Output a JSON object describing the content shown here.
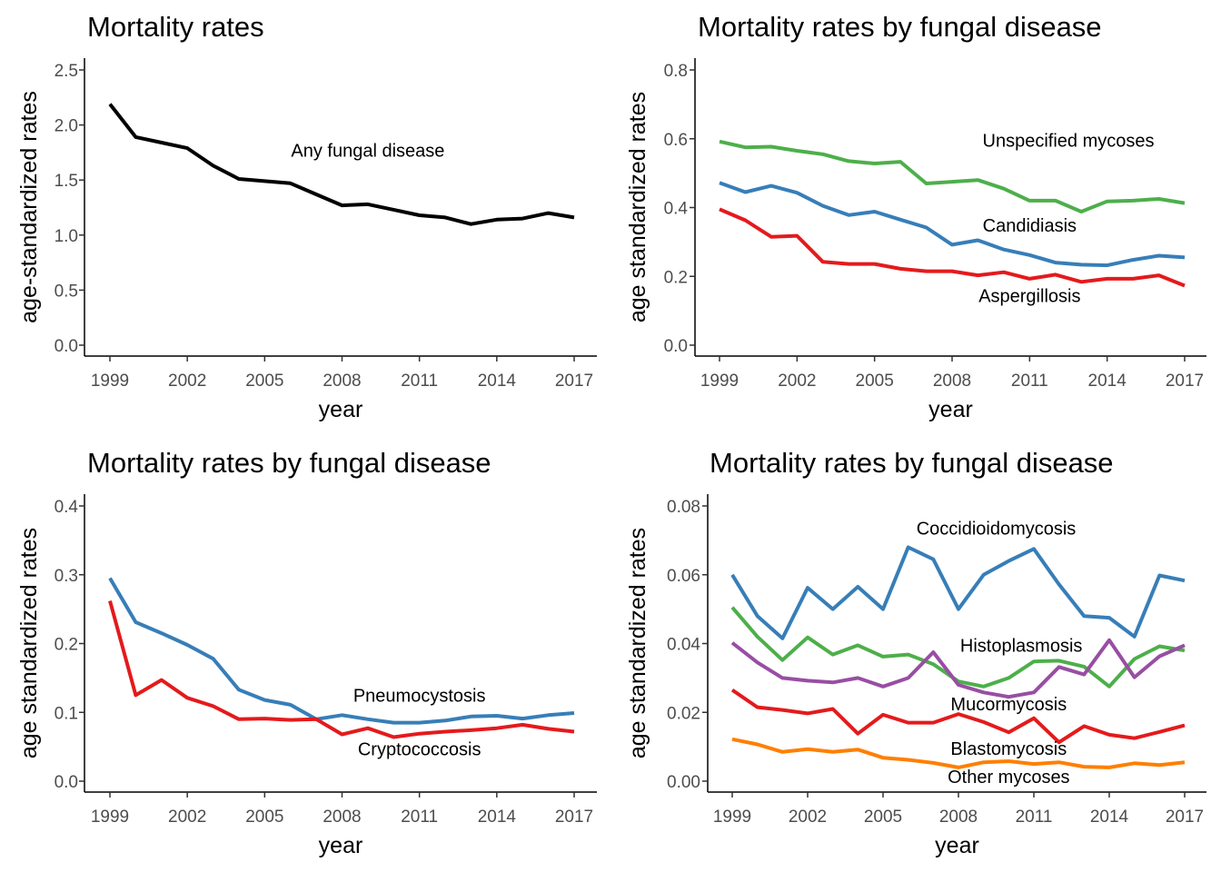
{
  "chart_data": [
    {
      "type": "line",
      "title": "Mortality rates",
      "xlabel": "year",
      "ylabel": "age-standardized rates",
      "xlim": [
        1999,
        2017
      ],
      "ylim": [
        0,
        2.5
      ],
      "xticks": [
        "1999",
        "2002",
        "2005",
        "2008",
        "2011",
        "2014",
        "2017"
      ],
      "yticks": [
        "0.0",
        "0.5",
        "1.0",
        "1.5",
        "2.0",
        "2.5"
      ],
      "grid": false,
      "legend": "none",
      "x": [
        1999,
        2000,
        2001,
        2002,
        2003,
        2004,
        2005,
        2006,
        2007,
        2008,
        2009,
        2010,
        2011,
        2012,
        2013,
        2014,
        2015,
        2016,
        2017
      ],
      "series": [
        {
          "color": "#000000",
          "values": [
            2.19,
            1.89,
            1.84,
            1.79,
            1.63,
            1.51,
            1.49,
            1.47,
            1.37,
            1.27,
            1.28,
            1.23,
            1.18,
            1.16,
            1.1,
            1.14,
            1.15,
            1.2,
            1.16
          ]
        }
      ],
      "annotations": [
        {
          "text": "Any fungal disease",
          "x": 2009.0,
          "y": 1.77
        }
      ]
    },
    {
      "type": "line",
      "title": "Mortality rates by fungal disease",
      "xlabel": "year",
      "ylabel": "age standardized rates",
      "xlim": [
        1999,
        2017
      ],
      "ylim": [
        0,
        0.8
      ],
      "xticks": [
        "1999",
        "2002",
        "2005",
        "2008",
        "2011",
        "2014",
        "2017"
      ],
      "yticks": [
        "0.0",
        "0.2",
        "0.4",
        "0.6",
        "0.8"
      ],
      "grid": false,
      "legend": "none",
      "x": [
        1999,
        2000,
        2001,
        2002,
        2003,
        2004,
        2005,
        2006,
        2007,
        2008,
        2009,
        2010,
        2011,
        2012,
        2013,
        2014,
        2015,
        2016,
        2017
      ],
      "series": [
        {
          "color": "#4daf4a",
          "values": [
            0.592,
            0.575,
            0.577,
            0.565,
            0.555,
            0.535,
            0.528,
            0.533,
            0.47,
            0.475,
            0.48,
            0.455,
            0.42,
            0.42,
            0.388,
            0.418,
            0.42,
            0.425,
            0.413
          ]
        },
        {
          "color": "#377eb8",
          "values": [
            0.472,
            0.445,
            0.463,
            0.443,
            0.405,
            0.378,
            0.388,
            0.365,
            0.342,
            0.292,
            0.305,
            0.278,
            0.262,
            0.24,
            0.234,
            0.232,
            0.248,
            0.26,
            0.255
          ]
        },
        {
          "color": "#e41a1c",
          "values": [
            0.395,
            0.363,
            0.315,
            0.318,
            0.242,
            0.236,
            0.236,
            0.222,
            0.215,
            0.215,
            0.203,
            0.212,
            0.193,
            0.205,
            0.184,
            0.193,
            0.193,
            0.203,
            0.173
          ]
        }
      ],
      "annotations": [
        {
          "text": "Unspecified mycoses",
          "x": 2012.5,
          "y": 0.595
        },
        {
          "text": "Candidiasis",
          "x": 2011.0,
          "y": 0.348
        },
        {
          "text": "Aspergillosis",
          "x": 2011.0,
          "y": 0.144
        }
      ]
    },
    {
      "type": "line",
      "title": "Mortality rates by fungal disease",
      "xlabel": "year",
      "ylabel": "age standardized rates",
      "xlim": [
        1999,
        2017
      ],
      "ylim": [
        0,
        0.4
      ],
      "xticks": [
        "1999",
        "2002",
        "2005",
        "2008",
        "2011",
        "2014",
        "2017"
      ],
      "yticks": [
        "0.0",
        "0.1",
        "0.2",
        "0.3",
        "0.4"
      ],
      "grid": false,
      "legend": "none",
      "x": [
        1999,
        2000,
        2001,
        2002,
        2003,
        2004,
        2005,
        2006,
        2007,
        2008,
        2009,
        2010,
        2011,
        2012,
        2013,
        2014,
        2015,
        2016,
        2017
      ],
      "series": [
        {
          "color": "#377eb8",
          "values": [
            0.295,
            0.231,
            0.215,
            0.198,
            0.178,
            0.133,
            0.118,
            0.111,
            0.09,
            0.096,
            0.09,
            0.085,
            0.085,
            0.088,
            0.094,
            0.095,
            0.091,
            0.096,
            0.099
          ]
        },
        {
          "color": "#e41a1c",
          "values": [
            0.262,
            0.125,
            0.147,
            0.121,
            0.109,
            0.09,
            0.091,
            0.089,
            0.09,
            0.068,
            0.077,
            0.064,
            0.069,
            0.072,
            0.074,
            0.077,
            0.082,
            0.076,
            0.072
          ]
        }
      ],
      "annotations": [
        {
          "text": "Pneumocystosis",
          "x": 2011.0,
          "y": 0.125
        },
        {
          "text": "Cryptococcosis",
          "x": 2011.0,
          "y": 0.047
        }
      ]
    },
    {
      "type": "line",
      "title": "Mortality rates by fungal disease",
      "xlabel": "year",
      "ylabel": "age standardized rates",
      "xlim": [
        1999,
        2017
      ],
      "ylim": [
        0,
        0.08
      ],
      "xticks": [
        "1999",
        "2002",
        "2005",
        "2008",
        "2011",
        "2014",
        "2017"
      ],
      "yticks": [
        "0.00",
        "0.02",
        "0.04",
        "0.06",
        "0.08"
      ],
      "grid": false,
      "legend": "none",
      "x": [
        1999,
        2000,
        2001,
        2002,
        2003,
        2004,
        2005,
        2006,
        2007,
        2008,
        2009,
        2010,
        2011,
        2012,
        2013,
        2014,
        2015,
        2016,
        2017
      ],
      "series": [
        {
          "color": "#377eb8",
          "values": [
            0.06,
            0.048,
            0.0415,
            0.0562,
            0.05,
            0.0565,
            0.05,
            0.068,
            0.0645,
            0.05,
            0.06,
            0.064,
            0.0675,
            0.0572,
            0.048,
            0.0475,
            0.042,
            0.0598,
            0.0583
          ]
        },
        {
          "color": "#4daf4a",
          "values": [
            0.0505,
            0.042,
            0.0352,
            0.0418,
            0.0368,
            0.0395,
            0.0362,
            0.0368,
            0.034,
            0.029,
            0.0275,
            0.03,
            0.0348,
            0.035,
            0.0333,
            0.0275,
            0.0355,
            0.0392,
            0.038
          ]
        },
        {
          "color": "#984ea3",
          "values": [
            0.0402,
            0.0345,
            0.03,
            0.0292,
            0.0287,
            0.03,
            0.0275,
            0.03,
            0.0375,
            0.028,
            0.0258,
            0.0245,
            0.0258,
            0.0332,
            0.031,
            0.041,
            0.0302,
            0.0363,
            0.0395
          ]
        },
        {
          "color": "#e41a1c",
          "values": [
            0.0265,
            0.0215,
            0.0207,
            0.0197,
            0.021,
            0.0138,
            0.0193,
            0.017,
            0.017,
            0.0195,
            0.0172,
            0.0142,
            0.0183,
            0.0113,
            0.016,
            0.0135,
            0.0125,
            0.0143,
            0.0162
          ]
        },
        {
          "color": "#ff7f00",
          "values": [
            0.0122,
            0.0107,
            0.0085,
            0.0093,
            0.0085,
            0.0092,
            0.0068,
            0.0062,
            0.0053,
            0.004,
            0.0055,
            0.0058,
            0.005,
            0.0055,
            0.0042,
            0.004,
            0.0052,
            0.0047,
            0.0055
          ]
        }
      ],
      "annotations": [
        {
          "text": "Coccidioidomycosis",
          "x": 2009.5,
          "y": 0.0735
        },
        {
          "text": "Histoplasmosis",
          "x": 2010.5,
          "y": 0.0395
        },
        {
          "text": "Mucormycosis",
          "x": 2010.0,
          "y": 0.0225
        },
        {
          "text": "Blastomycosis",
          "x": 2010.0,
          "y": 0.0095
        },
        {
          "text": "Other mycoses",
          "x": 2010.0,
          "y": 0.0013
        }
      ]
    }
  ]
}
